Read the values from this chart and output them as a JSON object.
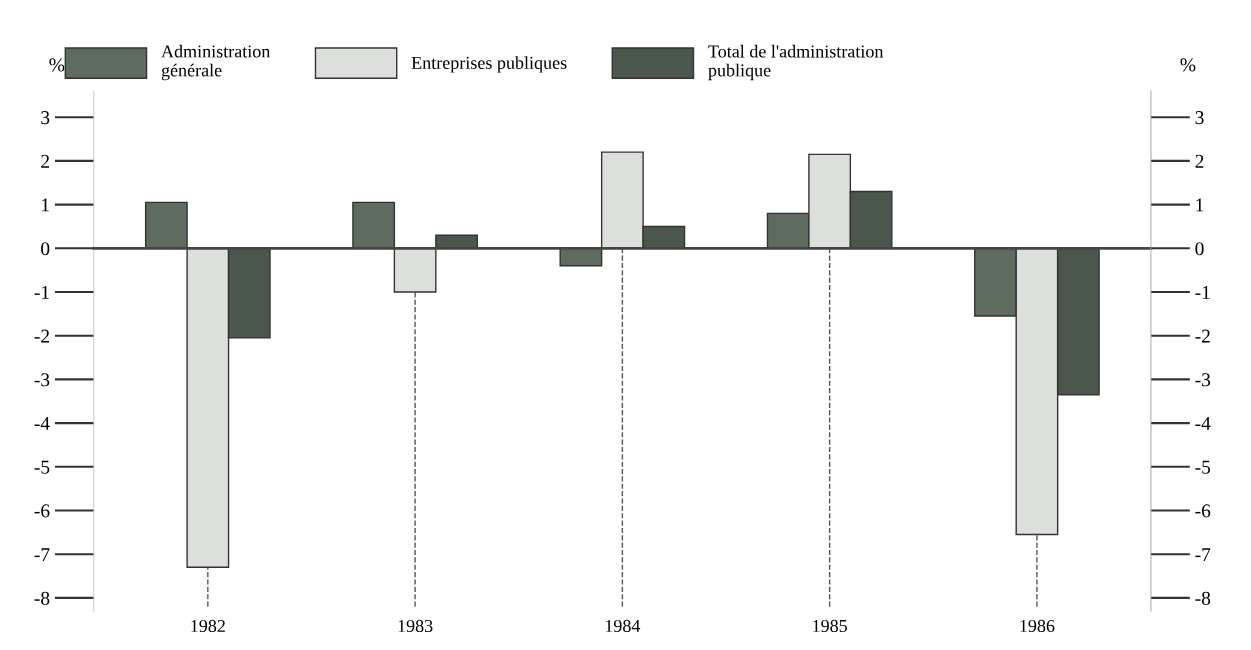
{
  "chart_data": {
    "type": "bar",
    "categories": [
      "1982",
      "1983",
      "1984",
      "1985",
      "1986"
    ],
    "series": [
      {
        "name": "Administration\ngénérale",
        "color": "#5e6b5f",
        "values": [
          1.05,
          1.05,
          -0.4,
          0.8,
          -1.55
        ]
      },
      {
        "name": "Entreprises publiques",
        "color": "#dcdfdb",
        "values": [
          -7.3,
          -1.0,
          2.2,
          2.15,
          -6.55
        ]
      },
      {
        "name": "Total de l'administration\npublique",
        "color": "#4b564d",
        "values": [
          -2.05,
          0.3,
          0.5,
          1.3,
          -3.35
        ]
      }
    ],
    "ylabel": "%",
    "y2label": "%",
    "ylim": [
      -8.3,
      3.6
    ],
    "yticks": [
      3,
      2,
      1,
      0,
      {
        "value": -1,
        "label": "-1"
      },
      {
        "value": -2,
        "label": "-2"
      },
      {
        "value": -3,
        "label": "-3"
      },
      {
        "value": -4,
        "label": "-4"
      },
      {
        "value": -5,
        "label": "-5"
      },
      {
        "value": -6,
        "label": "-6"
      },
      {
        "value": -7,
        "label": "-7"
      },
      {
        "value": -8,
        "label": "-8"
      }
    ],
    "y2lim": [
      -8.3,
      3.6
    ],
    "y2ticks": [
      3,
      2,
      1,
      0,
      {
        "value": -1,
        "label": "-1"
      },
      {
        "value": -2,
        "label": "-2"
      },
      {
        "value": -3,
        "label": "-3"
      },
      {
        "value": -4,
        "label": "-4"
      },
      {
        "value": -5,
        "label": "-5"
      },
      {
        "value": -6,
        "label": "-6"
      },
      {
        "value": -7,
        "label": "-7"
      },
      {
        "value": -8,
        "label": "-8"
      }
    ],
    "ref_lines": [
      {
        "axis": "x",
        "value": "1982",
        "line_style": "dashed",
        "color": "#555555"
      },
      {
        "axis": "x",
        "value": "1983",
        "line_style": "dashed",
        "color": "#555555"
      },
      {
        "axis": "x",
        "value": "1984",
        "line_style": "dashed",
        "color": "#555555"
      },
      {
        "axis": "x",
        "value": "1985",
        "line_style": "dashed",
        "color": "#555555"
      },
      {
        "axis": "x",
        "value": "1986",
        "line_style": "dashed",
        "color": "#555555"
      }
    ],
    "legend": "top"
  }
}
